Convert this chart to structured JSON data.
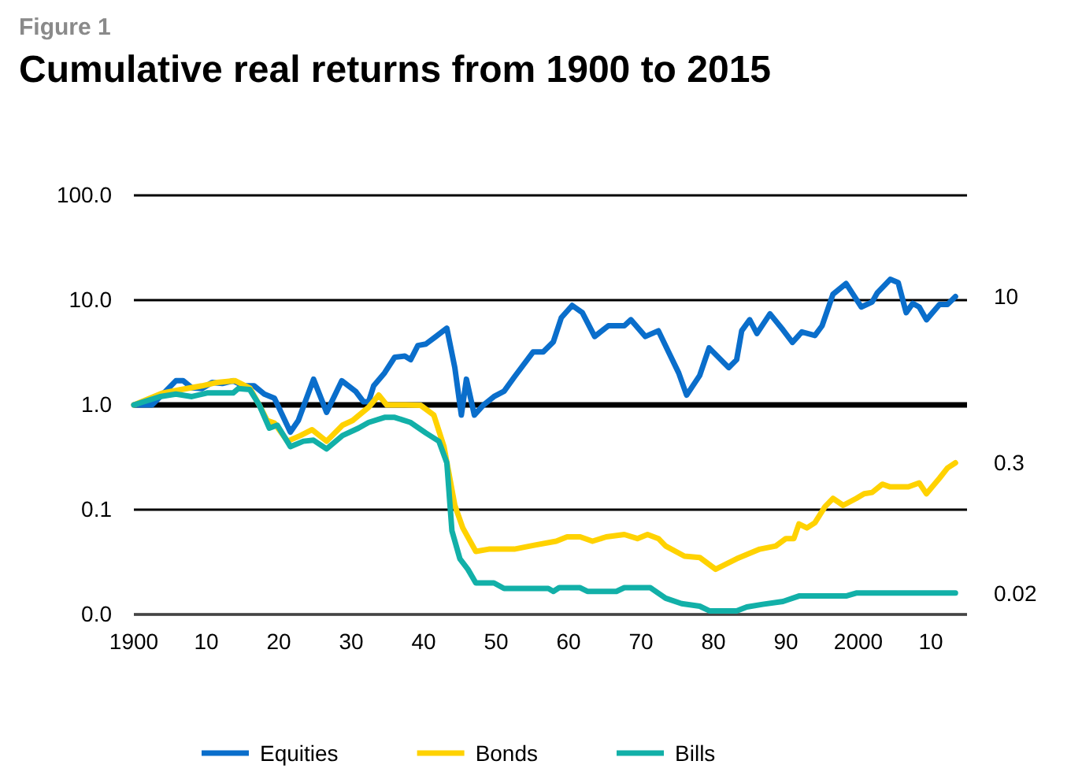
{
  "chart_data": {
    "type": "line",
    "subtitle": "Figure 1",
    "title": "Cumulative real returns from 1900 to 2015",
    "log": "y",
    "grid": "y",
    "legend": "bottom",
    "line_style": "solid",
    "marker": "none",
    "xlim": [
      1900,
      2015
    ],
    "xticks": [
      1900,
      {
        "value": 1910,
        "label": "10"
      },
      {
        "value": 1920,
        "label": "20"
      },
      {
        "value": 1930,
        "label": "30"
      },
      {
        "value": 1940,
        "label": "40"
      },
      {
        "value": 1950,
        "label": "50"
      },
      {
        "value": 1960,
        "label": "60"
      },
      {
        "value": 1970,
        "label": "70"
      },
      {
        "value": 1980,
        "label": "80"
      },
      {
        "value": 1990,
        "label": "90"
      },
      2000,
      {
        "value": 2010,
        "label": "10"
      }
    ],
    "ylim": [
      0.01,
      100
    ],
    "yticks": [
      {
        "value": 0.01,
        "label": "0.0"
      },
      0.1,
      {
        "value": 1,
        "label": "1.0"
      },
      {
        "value": 10,
        "label": "10.0"
      },
      {
        "value": 100,
        "label": "100.0"
      }
    ],
    "ref_lines": [
      {
        "axis": "y",
        "value": 1,
        "color": "#000000"
      }
    ],
    "annotations": [
      "10",
      "0.3",
      "0.02"
    ],
    "series": [
      {
        "name": "Equities",
        "color": "#0a6ecb",
        "x": [
          1900,
          1902.5,
          1904,
          1905.8,
          1906.8,
          1908,
          1909.4,
          1910.8,
          1912.2,
          1913.7,
          1915.1,
          1916.6,
          1918,
          1919.4,
          1921.6,
          1922.7,
          1924.8,
          1926.6,
          1928.7,
          1930.6,
          1931.7,
          1932.4,
          1933.1,
          1934.6,
          1936,
          1937.4,
          1938.2,
          1939.2,
          1940.3,
          1941.7,
          1943.2,
          1944.3,
          1945.2,
          1945.9,
          1947,
          1948.2,
          1949.7,
          1951.1,
          1952.5,
          1955.1,
          1956.5,
          1957.9,
          1959,
          1960.5,
          1961.9,
          1963.6,
          1965.5,
          1967.7,
          1968.6,
          1970.6,
          1972.4,
          1973.8,
          1975.2,
          1976.3,
          1978.1,
          1979.4,
          1982.1,
          1983.2,
          1983.9,
          1985,
          1986,
          1987.8,
          1989.6,
          1990.9,
          1992.2,
          1994,
          1995,
          1996.5,
          1998.3,
          2000.4,
          2001.9,
          2002.6,
          2004.4,
          2005.5,
          2006.6,
          2007.5,
          2008.4,
          2009.4,
          2011.2,
          2012.3,
          2013.4
        ],
        "values": [
          1.0,
          1.0,
          1.27,
          1.7,
          1.7,
          1.46,
          1.43,
          1.64,
          1.6,
          1.7,
          1.52,
          1.52,
          1.27,
          1.16,
          0.55,
          0.71,
          1.76,
          0.85,
          1.7,
          1.35,
          1.07,
          1.07,
          1.52,
          2.02,
          2.85,
          2.92,
          2.7,
          3.69,
          3.81,
          4.5,
          5.4,
          2.27,
          0.8,
          1.76,
          0.8,
          0.99,
          1.2,
          1.35,
          1.84,
          3.2,
          3.2,
          4.0,
          6.8,
          8.9,
          7.6,
          4.5,
          5.7,
          5.7,
          6.5,
          4.5,
          5.1,
          3.2,
          2.02,
          1.24,
          1.91,
          3.5,
          2.27,
          2.7,
          5.1,
          6.5,
          4.8,
          7.4,
          5.2,
          3.95,
          4.97,
          4.6,
          5.7,
          11.4,
          14.4,
          8.6,
          9.6,
          11.7,
          15.8,
          14.7,
          7.6,
          9.3,
          8.6,
          6.5,
          9.1,
          9.1,
          10.8
        ]
      },
      {
        "name": "Bonds",
        "color": "#ffd200",
        "x": [
          1900,
          1904,
          1906.5,
          1909.4,
          1911.5,
          1914,
          1916,
          1917.3,
          1918.4,
          1919.4,
          1921.2,
          1923,
          1924.6,
          1926.6,
          1928.8,
          1930.2,
          1932.4,
          1933.8,
          1934.9,
          1937.4,
          1939.6,
          1941.4,
          1942.8,
          1944.3,
          1945.4,
          1947.2,
          1949,
          1952.5,
          1955.4,
          1958.3,
          1959.8,
          1961.6,
          1963.3,
          1965.2,
          1967.7,
          1969.5,
          1970.9,
          1972.4,
          1973.4,
          1976,
          1978.1,
          1980.3,
          1983.2,
          1986.4,
          1988.6,
          1990,
          1991.1,
          1991.8,
          1992.9,
          1994,
          1995.4,
          1996.5,
          1997.9,
          1999.7,
          2000.8,
          2001.9,
          2003.3,
          2004.4,
          2006.9,
          2008.4,
          2009.4,
          2011.2,
          2012.3,
          2013.4
        ],
        "values": [
          1.0,
          1.3,
          1.4,
          1.52,
          1.64,
          1.7,
          1.45,
          1.0,
          0.71,
          0.67,
          0.45,
          0.51,
          0.58,
          0.45,
          0.64,
          0.71,
          0.95,
          1.24,
          1.0,
          1.0,
          0.99,
          0.8,
          0.4,
          0.11,
          0.067,
          0.04,
          0.042,
          0.042,
          0.046,
          0.05,
          0.055,
          0.055,
          0.05,
          0.055,
          0.058,
          0.053,
          0.058,
          0.053,
          0.045,
          0.036,
          0.035,
          0.027,
          0.034,
          0.042,
          0.045,
          0.053,
          0.053,
          0.073,
          0.067,
          0.075,
          0.107,
          0.128,
          0.11,
          0.128,
          0.142,
          0.146,
          0.175,
          0.165,
          0.165,
          0.18,
          0.142,
          0.2,
          0.25,
          0.28
        ]
      },
      {
        "name": "Bills",
        "color": "#12b0a8",
        "x": [
          1900,
          1903.6,
          1905.8,
          1908,
          1910.1,
          1913.7,
          1914.4,
          1916,
          1917.3,
          1918.7,
          1919.8,
          1921.6,
          1923.4,
          1924.8,
          1926.6,
          1928.8,
          1931,
          1932.4,
          1934.6,
          1936,
          1938.2,
          1940.3,
          1942.1,
          1943.2,
          1943.9,
          1945,
          1946.1,
          1947.2,
          1949.7,
          1951.1,
          1957.2,
          1957.9,
          1958.7,
          1961.6,
          1962.6,
          1966.6,
          1967.7,
          1971.3,
          1973.4,
          1975.6,
          1978.1,
          1979.5,
          1983.2,
          1984.6,
          1986.8,
          1989.6,
          1991.8,
          1998.3,
          1999.7,
          2013.4
        ],
        "values": [
          1.0,
          1.2,
          1.27,
          1.2,
          1.3,
          1.3,
          1.43,
          1.4,
          1.0,
          0.6,
          0.64,
          0.4,
          0.45,
          0.46,
          0.38,
          0.51,
          0.6,
          0.68,
          0.76,
          0.76,
          0.68,
          0.54,
          0.45,
          0.28,
          0.063,
          0.034,
          0.027,
          0.02,
          0.02,
          0.0177,
          0.0177,
          0.0166,
          0.018,
          0.018,
          0.0166,
          0.0166,
          0.018,
          0.018,
          0.0143,
          0.0127,
          0.012,
          0.0108,
          0.0108,
          0.0118,
          0.0125,
          0.0133,
          0.015,
          0.015,
          0.016,
          0.016
        ]
      }
    ]
  }
}
